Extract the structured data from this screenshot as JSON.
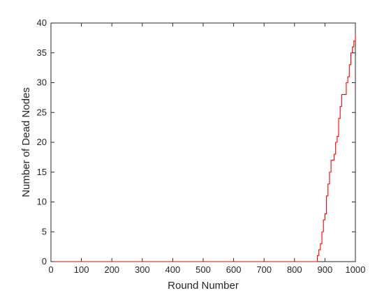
{
  "chart_data": {
    "type": "line",
    "title": "",
    "xlabel": "Round Number",
    "ylabel": "Number of Dead Nodes",
    "xlim": [
      0,
      1000
    ],
    "ylim": [
      0,
      40
    ],
    "xticks": [
      0,
      100,
      200,
      300,
      400,
      500,
      600,
      700,
      800,
      900,
      1000
    ],
    "yticks": [
      0,
      5,
      10,
      15,
      20,
      25,
      30,
      35,
      40
    ],
    "grid": false,
    "series": [
      {
        "color": "#ff0000",
        "x": [
          0,
          870,
          875,
          880,
          885,
          890,
          895,
          900,
          905,
          910,
          915,
          920,
          925,
          930,
          935,
          940,
          945,
          950,
          955,
          960,
          965,
          970,
          975,
          980,
          985,
          990,
          995,
          1000
        ],
        "y": [
          0,
          0,
          1,
          2,
          3,
          5,
          7,
          8,
          11,
          13,
          15,
          17,
          17,
          18,
          20,
          21,
          24,
          26,
          28,
          28,
          28,
          30,
          31,
          33,
          35,
          36,
          37,
          38
        ]
      }
    ]
  }
}
